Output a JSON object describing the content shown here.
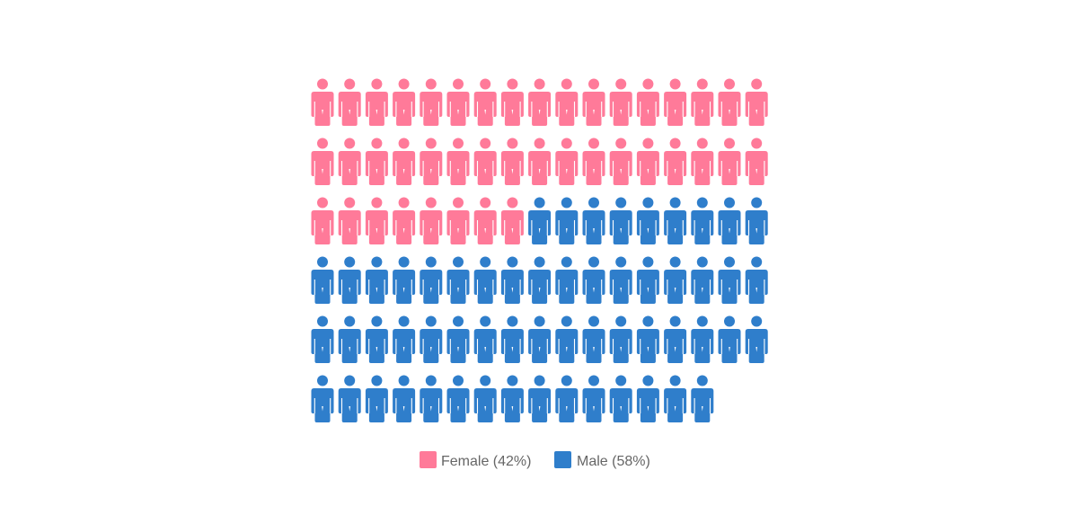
{
  "chart_data": {
    "type": "pictogram",
    "icon": "person-icon",
    "total_icons": 100,
    "columns": 17,
    "series": [
      {
        "name": "Female (42%)",
        "value": 42,
        "color": "#ff7a99"
      },
      {
        "name": "Male (58%)",
        "value": 58,
        "color": "#2f7ecb"
      }
    ],
    "legend_position": "bottom-center"
  }
}
